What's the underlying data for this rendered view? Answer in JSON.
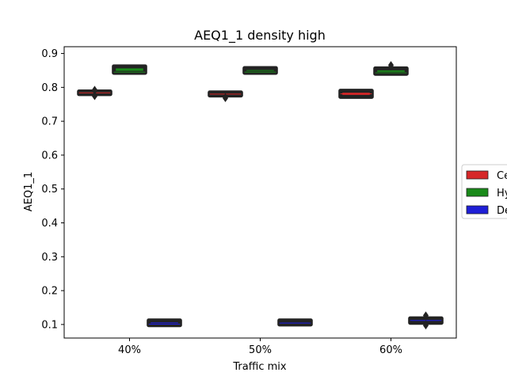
{
  "chart_data": {
    "type": "box",
    "title": "AEQ1_1 density high",
    "xlabel": "Traffic mix",
    "ylabel": "AEQ1_1",
    "categories": [
      "40%",
      "50%",
      "60%"
    ],
    "ylim": [
      0.06,
      0.92
    ],
    "yticks": [
      "0.1",
      "0.2",
      "0.3",
      "0.4",
      "0.5",
      "0.6",
      "0.7",
      "0.8",
      "0.9"
    ],
    "grid": false,
    "legend_position": "right",
    "series": [
      {
        "name": "Ce",
        "color": "#d62728",
        "boxes": [
          {
            "q1": 0.78,
            "median": 0.784,
            "q3": 0.788,
            "whisker_low": 0.78,
            "whisker_high": 0.788,
            "outliers": [
              0.793,
              0.79,
              0.777,
              0.774
            ]
          },
          {
            "q1": 0.776,
            "median": 0.78,
            "q3": 0.785,
            "whisker_low": 0.776,
            "whisker_high": 0.785,
            "outliers": [
              0.771,
              0.768
            ]
          },
          {
            "q1": 0.772,
            "median": 0.781,
            "q3": 0.79,
            "whisker_low": 0.772,
            "whisker_high": 0.79,
            "outliers": []
          }
        ]
      },
      {
        "name": "Hy",
        "color": "#1a8a1a",
        "boxes": [
          {
            "q1": 0.843,
            "median": 0.845,
            "q3": 0.862,
            "whisker_low": 0.841,
            "whisker_high": 0.862,
            "outliers": []
          },
          {
            "q1": 0.843,
            "median": 0.845,
            "q3": 0.857,
            "whisker_low": 0.841,
            "whisker_high": 0.857,
            "outliers": []
          },
          {
            "q1": 0.84,
            "median": 0.843,
            "q3": 0.856,
            "whisker_low": 0.836,
            "whisker_high": 0.856,
            "outliers": [
              0.866,
              0.861
            ]
          }
        ]
      },
      {
        "name": "De",
        "color": "#1f1fd6",
        "boxes": [
          {
            "q1": 0.098,
            "median": 0.101,
            "q3": 0.112,
            "whisker_low": 0.098,
            "whisker_high": 0.112,
            "outliers": []
          },
          {
            "q1": 0.1,
            "median": 0.104,
            "q3": 0.112,
            "whisker_low": 0.1,
            "whisker_high": 0.112,
            "outliers": []
          },
          {
            "q1": 0.105,
            "median": 0.112,
            "q3": 0.118,
            "whisker_low": 0.105,
            "whisker_high": 0.118,
            "outliers": [
              0.127,
              0.123,
              0.1,
              0.097
            ]
          }
        ]
      }
    ]
  }
}
